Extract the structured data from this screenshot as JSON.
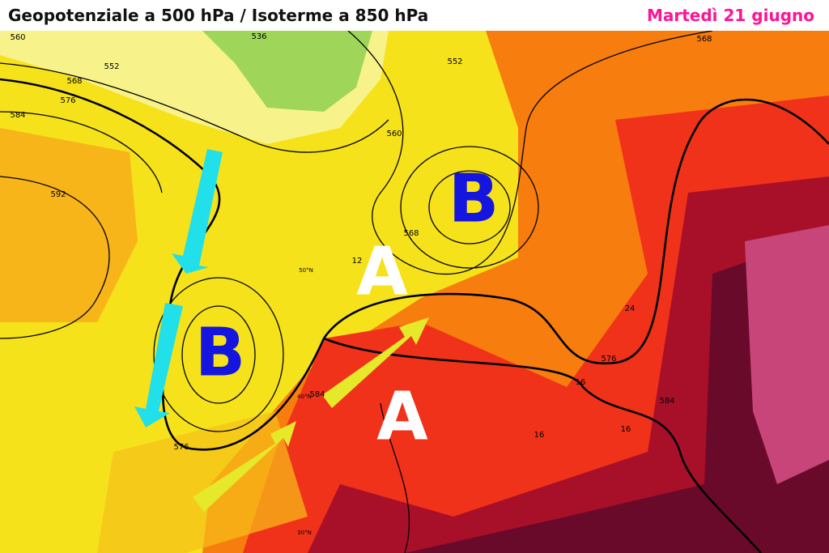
{
  "header": {
    "title": "Geopotenziale a 500 hPa / Isoterme a 850 hPa",
    "date": "Martedì 21 giugno"
  },
  "pressure_centers": [
    {
      "label": "B"
    },
    {
      "label": "B"
    },
    {
      "label": "A"
    },
    {
      "label": "A"
    }
  ],
  "contour_labels": [
    {
      "text": "560"
    },
    {
      "text": "536"
    },
    {
      "text": "552"
    },
    {
      "text": "568"
    },
    {
      "text": "576"
    },
    {
      "text": "584"
    },
    {
      "text": "592"
    },
    {
      "text": "552"
    },
    {
      "text": "560"
    },
    {
      "text": "568"
    },
    {
      "text": "568"
    },
    {
      "text": "576"
    },
    {
      "text": "584"
    },
    {
      "text": "576"
    },
    {
      "text": "584"
    },
    {
      "text": "12"
    },
    {
      "text": "16"
    },
    {
      "text": "16"
    },
    {
      "text": "24"
    },
    {
      "text": "16"
    }
  ],
  "latitude_labels": [
    {
      "text": "50°N"
    },
    {
      "text": "40°N"
    },
    {
      "text": "30°N"
    }
  ]
}
